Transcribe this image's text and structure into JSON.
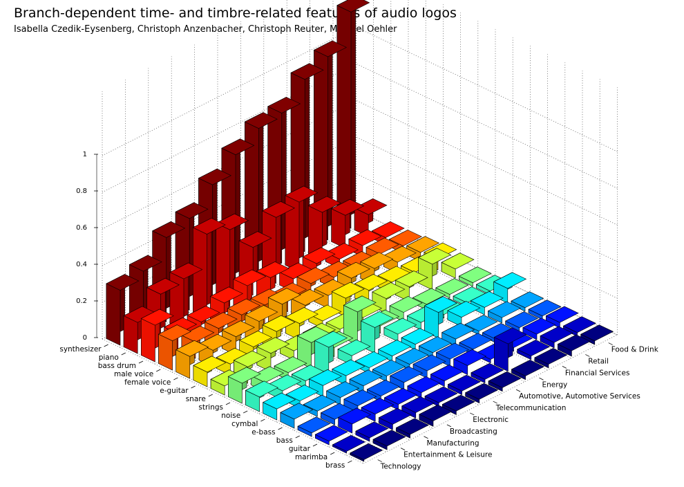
{
  "title": "Branch-dependent time- and timbre-related features of audio logos",
  "subtitle": "Isabella Czedik-Eysenberg, Christoph Anzenbacher, Christoph Reuter, Michael Oehler",
  "chart_data": {
    "type": "bar3d",
    "title": "Branch-dependent time- and timbre-related features of audio logos",
    "subtitle": "Isabella Czedik-Eysenberg, Christoph Anzenbacher, Christoph Reuter, Michael Oehler",
    "instruments": [
      "synthesizer",
      "piano",
      "bass drum",
      "male voice",
      "female voice",
      "e-guitar",
      "snare",
      "strings",
      "noise",
      "cymbal",
      "e-bass",
      "bass",
      "guitar",
      "marimba",
      "brass"
    ],
    "branches": [
      "Technology",
      "Entertainment & Leisure",
      "Manufacturing",
      "Broadcasting",
      "Electronic",
      "Telecommunication",
      "Automotive, Automotive Services",
      "Energy",
      "Financial Services",
      "Retail",
      "Food & Drink"
    ],
    "z_ticks": [
      "0",
      "0.2",
      "0.4",
      "0.6",
      "0.8",
      "1"
    ],
    "zlim": [
      0,
      1
    ],
    "colormap": "jet",
    "grid": true,
    "values": [
      [
        0.3,
        0.34,
        0.46,
        0.5,
        0.62,
        0.72,
        0.8,
        0.82,
        0.94,
        1.0,
        1.18
      ],
      [
        0.17,
        0.26,
        0.28,
        0.46,
        0.42,
        0.26,
        0.36,
        0.38,
        0.26,
        0.18,
        0.12
      ],
      [
        0.2,
        0.09,
        0.09,
        0.13,
        0.16,
        0.14,
        0.07,
        0.09,
        0.05,
        0.06,
        0.04
      ],
      [
        0.16,
        0.09,
        0.1,
        0.11,
        0.1,
        0.07,
        0.09,
        0.06,
        0.05,
        0.06,
        0.04
      ],
      [
        0.12,
        0.09,
        0.1,
        0.12,
        0.15,
        0.08,
        0.07,
        0.1,
        0.09,
        0.06,
        0.05
      ],
      [
        0.08,
        0.06,
        0.09,
        0.11,
        0.09,
        0.04,
        0.1,
        0.08,
        0.06,
        0.05,
        0.06
      ],
      [
        0.05,
        0.09,
        0.1,
        0.05,
        0.05,
        0.04,
        0.04,
        0.08,
        0.08,
        0.14,
        0.05
      ],
      [
        0.11,
        0.05,
        0.04,
        0.14,
        0.05,
        0.18,
        0.04,
        0.05,
        0.03,
        0.02,
        0.02
      ],
      [
        0.08,
        0.05,
        0.04,
        0.16,
        0.05,
        0.14,
        0.04,
        0.04,
        0.02,
        0.02,
        0.02
      ],
      [
        0.06,
        0.04,
        0.06,
        0.05,
        0.03,
        0.03,
        0.03,
        0.14,
        0.05,
        0.04,
        0.08
      ],
      [
        0.05,
        0.03,
        0.04,
        0.04,
        0.03,
        0.03,
        0.03,
        0.04,
        0.02,
        0.03,
        0.02
      ],
      [
        0.02,
        0.03,
        0.04,
        0.03,
        0.04,
        0.04,
        0.04,
        0.03,
        0.02,
        0.02,
        0.02
      ],
      [
        0.02,
        0.05,
        0.04,
        0.03,
        0.03,
        0.03,
        0.05,
        0.02,
        0.02,
        0.03,
        0.03
      ],
      [
        0.01,
        0.02,
        0.03,
        0.03,
        0.02,
        0.02,
        0.02,
        0.15,
        0.02,
        0.03,
        0.02
      ],
      [
        0.01,
        0.02,
        0.02,
        0.03,
        0.02,
        0.02,
        0.02,
        0.02,
        0.02,
        0.03,
        0.02
      ]
    ]
  }
}
